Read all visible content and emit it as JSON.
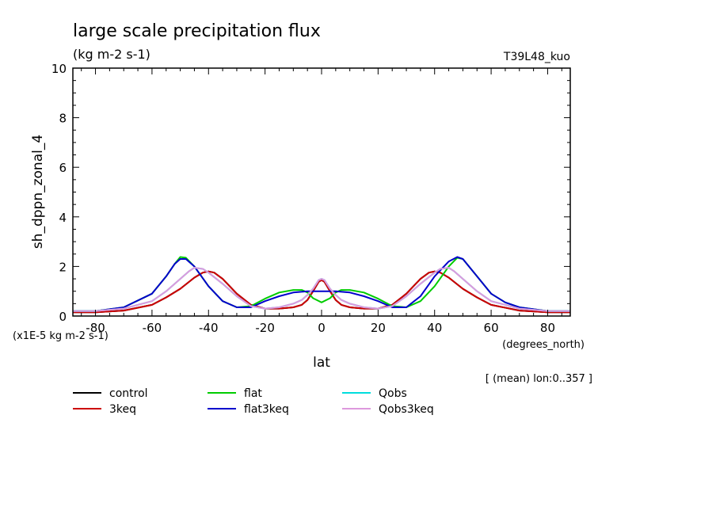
{
  "chart_data": {
    "type": "line",
    "title": "large scale precipitation flux",
    "subtitle": "(kg m-2 s-1)",
    "model_label": "T39L48_kuo",
    "ylabel": "sh_dppn_zonal_4",
    "xlabel": "lat",
    "x_units": "(degrees_north)",
    "y_scale_note": "(x1E-5 kg m-2 s-1)",
    "averaging_note": "[ (mean) lon:0..357 ]",
    "xlim": [
      -88,
      88
    ],
    "ylim": [
      0,
      10
    ],
    "x_ticks": [
      -80,
      -60,
      -40,
      -20,
      0,
      20,
      40,
      60,
      80
    ],
    "x_tick_labels": [
      "-80",
      "-60",
      "-40",
      "-20",
      "0",
      "20",
      "40",
      "60",
      "80"
    ],
    "y_ticks": [
      0,
      2,
      4,
      6,
      8,
      10
    ],
    "y_tick_labels": [
      "0",
      "2",
      "4",
      "6",
      "8",
      "10"
    ],
    "series": [
      {
        "name": "control",
        "color": "#000000",
        "x": [
          -88,
          -80,
          -70,
          -60,
          -55,
          -50,
          -45,
          -42,
          -40,
          -38,
          -35,
          -30,
          -25,
          -20,
          -15,
          -10,
          -7,
          -5,
          -3,
          -1,
          0,
          1,
          3,
          5,
          7,
          10,
          15,
          20,
          25,
          30,
          35,
          38,
          40,
          42,
          45,
          50,
          55,
          60,
          70,
          80,
          88
        ],
        "y": [
          0.15,
          0.15,
          0.22,
          0.45,
          0.75,
          1.1,
          1.55,
          1.75,
          1.8,
          1.75,
          1.5,
          0.9,
          0.45,
          0.3,
          0.3,
          0.35,
          0.45,
          0.65,
          1.0,
          1.38,
          1.45,
          1.38,
          1.0,
          0.65,
          0.45,
          0.35,
          0.3,
          0.3,
          0.45,
          0.9,
          1.5,
          1.75,
          1.8,
          1.75,
          1.55,
          1.1,
          0.75,
          0.45,
          0.22,
          0.15,
          0.15
        ]
      },
      {
        "name": "3keq",
        "color": "#cc0000",
        "x": [
          -88,
          -80,
          -70,
          -60,
          -55,
          -50,
          -45,
          -42,
          -40,
          -38,
          -35,
          -30,
          -25,
          -20,
          -15,
          -10,
          -7,
          -5,
          -3,
          -1,
          0,
          1,
          3,
          5,
          7,
          10,
          15,
          20,
          25,
          30,
          35,
          38,
          40,
          42,
          45,
          50,
          55,
          60,
          70,
          80,
          88
        ],
        "y": [
          0.15,
          0.15,
          0.22,
          0.45,
          0.75,
          1.1,
          1.55,
          1.75,
          1.8,
          1.75,
          1.5,
          0.9,
          0.45,
          0.3,
          0.3,
          0.35,
          0.45,
          0.65,
          1.0,
          1.38,
          1.45,
          1.38,
          1.0,
          0.65,
          0.45,
          0.35,
          0.3,
          0.3,
          0.45,
          0.9,
          1.5,
          1.75,
          1.8,
          1.75,
          1.55,
          1.1,
          0.75,
          0.45,
          0.22,
          0.15,
          0.15
        ]
      },
      {
        "name": "flat",
        "color": "#00cc00",
        "x": [
          -88,
          -80,
          -70,
          -60,
          -55,
          -52,
          -50,
          -48,
          -45,
          -40,
          -35,
          -30,
          -25,
          -20,
          -15,
          -10,
          -7,
          -5,
          -3,
          0,
          3,
          5,
          7,
          10,
          15,
          20,
          25,
          30,
          35,
          40,
          45,
          48,
          50,
          55,
          60,
          65,
          70,
          80,
          88
        ],
        "y": [
          0.2,
          0.2,
          0.35,
          0.9,
          1.6,
          2.1,
          2.38,
          2.35,
          2.0,
          1.2,
          0.6,
          0.35,
          0.4,
          0.7,
          0.95,
          1.05,
          1.05,
          0.95,
          0.72,
          0.55,
          0.72,
          0.95,
          1.05,
          1.05,
          0.95,
          0.7,
          0.4,
          0.35,
          0.6,
          1.2,
          2.0,
          2.35,
          2.3,
          1.6,
          0.9,
          0.55,
          0.35,
          0.2,
          0.2
        ]
      },
      {
        "name": "flat3keq",
        "color": "#0000cc",
        "x": [
          -88,
          -80,
          -70,
          -60,
          -55,
          -52,
          -50,
          -48,
          -45,
          -40,
          -35,
          -30,
          -25,
          -20,
          -15,
          -10,
          -5,
          0,
          5,
          10,
          15,
          20,
          25,
          30,
          35,
          40,
          45,
          48,
          50,
          55,
          60,
          65,
          70,
          80,
          88
        ],
        "y": [
          0.2,
          0.2,
          0.35,
          0.9,
          1.6,
          2.1,
          2.3,
          2.3,
          2.0,
          1.2,
          0.6,
          0.35,
          0.35,
          0.6,
          0.8,
          0.95,
          1.0,
          1.0,
          1.0,
          0.95,
          0.8,
          0.6,
          0.35,
          0.35,
          0.8,
          1.6,
          2.2,
          2.38,
          2.3,
          1.6,
          0.9,
          0.55,
          0.35,
          0.2,
          0.2
        ]
      },
      {
        "name": "Qobs",
        "color": "#00dddd",
        "x": [
          -88,
          -80,
          -70,
          -60,
          -55,
          -50,
          -47,
          -45,
          -42,
          -40,
          -35,
          -30,
          -25,
          -20,
          -15,
          -10,
          -7,
          -5,
          -3,
          -1,
          0,
          1,
          3,
          5,
          7,
          10,
          15,
          20,
          25,
          30,
          35,
          40,
          42,
          45,
          47,
          50,
          55,
          60,
          70,
          80,
          88
        ],
        "y": [
          0.2,
          0.2,
          0.3,
          0.6,
          1.0,
          1.5,
          1.8,
          1.95,
          1.9,
          1.75,
          1.3,
          0.8,
          0.4,
          0.3,
          0.35,
          0.5,
          0.65,
          0.85,
          1.1,
          1.45,
          1.5,
          1.45,
          1.1,
          0.85,
          0.65,
          0.5,
          0.35,
          0.3,
          0.4,
          0.8,
          1.3,
          1.75,
          1.9,
          1.95,
          1.8,
          1.5,
          1.0,
          0.6,
          0.3,
          0.2,
          0.2
        ]
      },
      {
        "name": "Qobs3keq",
        "color": "#dd99dd",
        "x": [
          -88,
          -80,
          -70,
          -60,
          -55,
          -50,
          -47,
          -45,
          -42,
          -40,
          -35,
          -30,
          -25,
          -20,
          -15,
          -10,
          -7,
          -5,
          -3,
          -1,
          0,
          1,
          3,
          5,
          7,
          10,
          15,
          20,
          25,
          30,
          35,
          40,
          42,
          45,
          47,
          50,
          55,
          60,
          70,
          80,
          88
        ],
        "y": [
          0.2,
          0.2,
          0.3,
          0.6,
          1.0,
          1.5,
          1.8,
          1.95,
          1.9,
          1.75,
          1.3,
          0.8,
          0.4,
          0.3,
          0.35,
          0.5,
          0.65,
          0.85,
          1.1,
          1.45,
          1.5,
          1.45,
          1.1,
          0.85,
          0.65,
          0.5,
          0.35,
          0.3,
          0.4,
          0.8,
          1.3,
          1.75,
          1.9,
          1.95,
          1.8,
          1.5,
          1.0,
          0.6,
          0.3,
          0.2,
          0.2
        ]
      }
    ]
  }
}
